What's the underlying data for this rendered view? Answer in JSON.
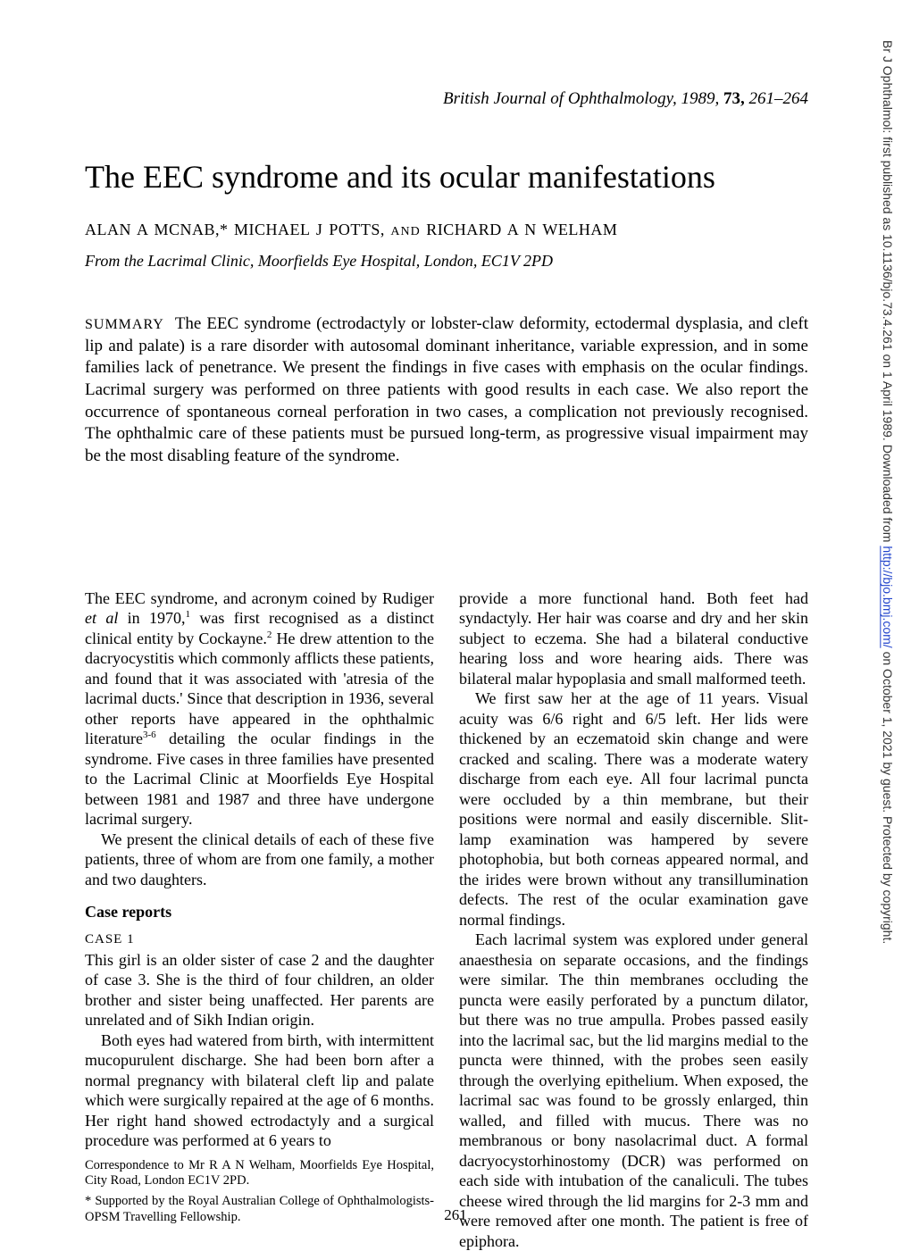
{
  "sidebar": {
    "text_before_link": "Br J Ophthalmol: first published as 10.1136/bjo.73.4.261 on 1 April 1989. Downloaded from ",
    "link_text": "http://bjo.bmj.com/",
    "text_after_link": " on October 1, 2021 by guest. Protected by copyright."
  },
  "header": {
    "journal": "British Journal of Ophthalmology,",
    "year": "1989,",
    "volume": "73,",
    "pages": "261–264"
  },
  "title": "The EEC syndrome and its ocular manifestations",
  "authors": {
    "a1": "ALAN A McNAB,*",
    "a2": "MICHAEL J POTTS,",
    "and": "AND",
    "a3": "RICHARD A N WELHAM"
  },
  "affiliation": "From the Lacrimal Clinic, Moorfields Eye Hospital, London, EC1V 2PD",
  "summary": {
    "label": "SUMMARY",
    "text": "The EEC syndrome (ectrodactyly or lobster-claw deformity, ectodermal dysplasia, and cleft lip and palate) is a rare disorder with autosomal dominant inheritance, variable expression, and in some families lack of penetrance. We present the findings in five cases with emphasis on the ocular findings. Lacrimal surgery was performed on three patients with good results in each case. We also report the occurrence of spontaneous corneal perforation in two cases, a complication not previously recognised. The ophthalmic care of these patients must be pursued long-term, as progressive visual impairment may be the most disabling feature of the syndrome."
  },
  "left_col": {
    "intro_part1": "The EEC syndrome, and acronym coined by Rudiger ",
    "intro_etal": "et al",
    "intro_part2": " in 1970,",
    "intro_sup1": "1",
    "intro_part3": " was first recognised as a distinct clinical entity by Cockayne.",
    "intro_sup2": "2",
    "intro_part4": " He drew attention to the dacryocystitis which commonly afflicts these patients, and found that it was associated with 'atresia of the lacrimal ducts.' Since that description in 1936, several other reports have appeared in the ophthalmic literature",
    "intro_sup3": "3-6",
    "intro_part5": " detailing the ocular findings in the syndrome. Five cases in three families have presented to the Lacrimal Clinic at Moorfields Eye Hospital between 1981 and 1987 and three have undergone lacrimal surgery.",
    "intro_p2": "We present the clinical details of each of these five patients, three of whom are from one family, a mother and two daughters.",
    "case_reports": "Case reports",
    "case1": "CASE 1",
    "case1_p1": "This girl is an older sister of case 2 and the daughter of case 3. She is the third of four children, an older brother and sister being unaffected. Her parents are unrelated and of Sikh Indian origin.",
    "case1_p2": "Both eyes had watered from birth, with intermittent mucopurulent discharge. She had been born after a normal pregnancy with bilateral cleft lip and palate which were surgically repaired at the age of 6 months. Her right hand showed ectrodactyly and a surgical procedure was performed at 6 years to",
    "correspondence": "Correspondence to Mr R A N Welham, Moorfields Eye Hospital, City Road, London EC1V 2PD.",
    "support": "* Supported by the Royal Australian College of Ophthalmologists-OPSM Travelling Fellowship."
  },
  "right_col": {
    "p1": "provide a more functional hand. Both feet had syndactyly. Her hair was coarse and dry and her skin subject to eczema. She had a bilateral conductive hearing loss and wore hearing aids. There was bilateral malar hypoplasia and small malformed teeth.",
    "p2": "We first saw her at the age of 11 years. Visual acuity was 6/6 right and 6/5 left. Her lids were thickened by an eczematoid skin change and were cracked and scaling. There was a moderate watery discharge from each eye. All four lacrimal puncta were occluded by a thin membrane, but their positions were normal and easily discernible. Slit-lamp examination was hampered by severe photophobia, but both corneas appeared normal, and the irides were brown without any transillumination defects. The rest of the ocular examination gave normal findings.",
    "p3": "Each lacrimal system was explored under general anaesthesia on separate occasions, and the findings were similar. The thin membranes occluding the puncta were easily perforated by a punctum dilator, but there was no true ampulla. Probes passed easily into the lacrimal sac, but the lid margins medial to the puncta were thinned, with the probes seen easily through the overlying epithelium. When exposed, the lacrimal sac was found to be grossly enlarged, thin walled, and filled with mucus. There was no membranous or bony nasolacrimal duct. A formal dacryocystorhinostomy (DCR) was performed on each side with intubation of the canaliculi. The tubes cheese wired through the lid margins for 2-3 mm and were removed after one month. The patient is free of epiphora."
  },
  "page_number": "261"
}
